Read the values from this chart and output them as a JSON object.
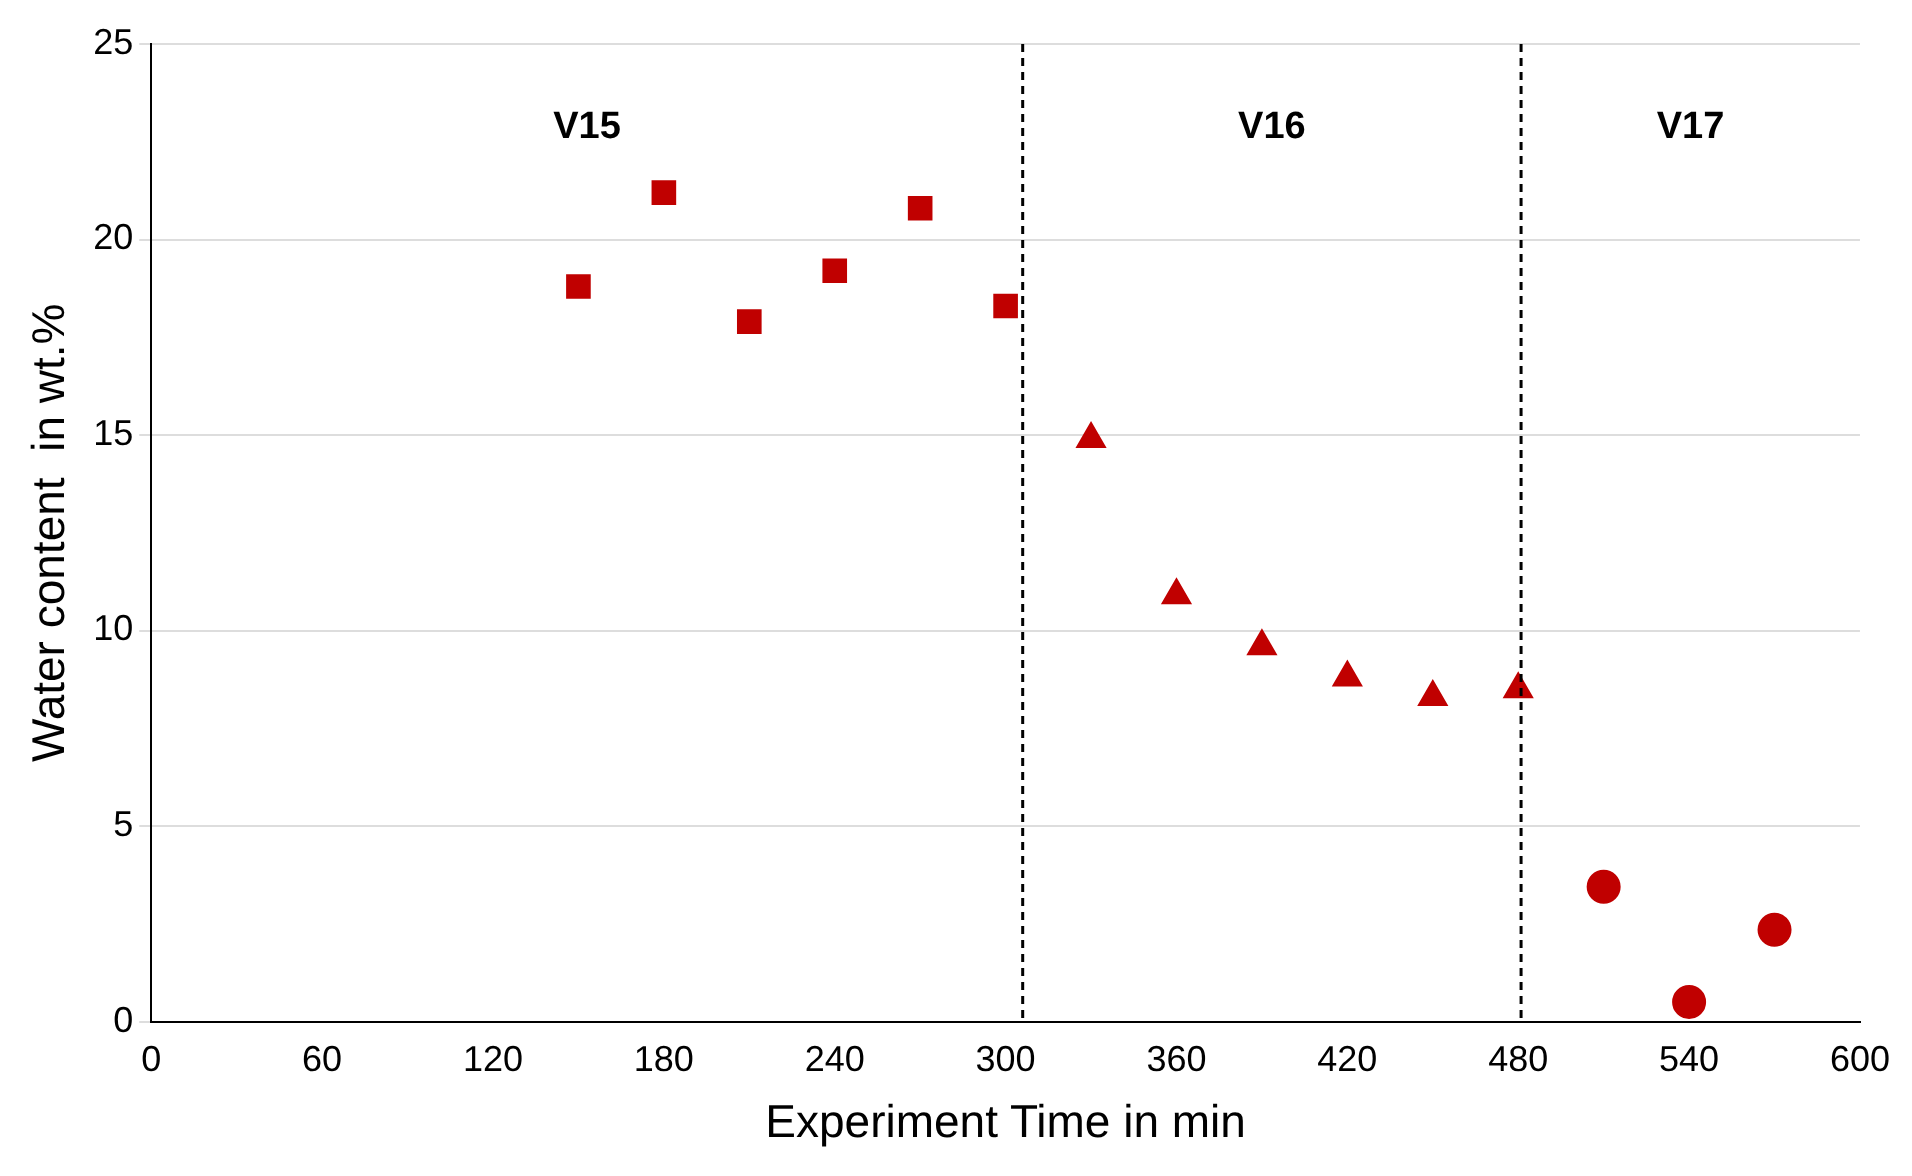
{
  "chart_data": {
    "type": "scatter",
    "xlabel": "Experiment Time in min",
    "ylabel": "Water content  in wt.%",
    "xlim": [
      0,
      600
    ],
    "xticks": [
      0,
      60,
      120,
      180,
      240,
      300,
      360,
      420,
      480,
      540,
      600
    ],
    "ylim": [
      0,
      25
    ],
    "yticks": [
      0,
      5,
      10,
      15,
      20,
      25
    ],
    "grid": "y",
    "legend": false,
    "series": [
      {
        "color": "#c00000",
        "marker": "square",
        "x": [
          150,
          180,
          210,
          240,
          270,
          300
        ],
        "values": [
          18.8,
          21.2,
          17.9,
          19.2,
          20.8,
          18.3
        ]
      },
      {
        "color": "#c00000",
        "marker": "triangle",
        "x": [
          330,
          360,
          390,
          420,
          450,
          480
        ],
        "values": [
          14.9,
          10.9,
          9.6,
          8.8,
          8.3,
          8.5
        ]
      },
      {
        "color": "#c00000",
        "marker": "circle",
        "x": [
          510,
          540,
          570
        ],
        "values": [
          3.45,
          0.5,
          2.35
        ]
      }
    ],
    "ref_lines": [
      {
        "axis": "x",
        "value": 306,
        "line_style": "dashed",
        "color": "#000000"
      },
      {
        "axis": "x",
        "value": 481,
        "line_style": "dashed",
        "color": "#000000"
      }
    ],
    "annotations": [
      "V15",
      "V16",
      "V17"
    ]
  }
}
